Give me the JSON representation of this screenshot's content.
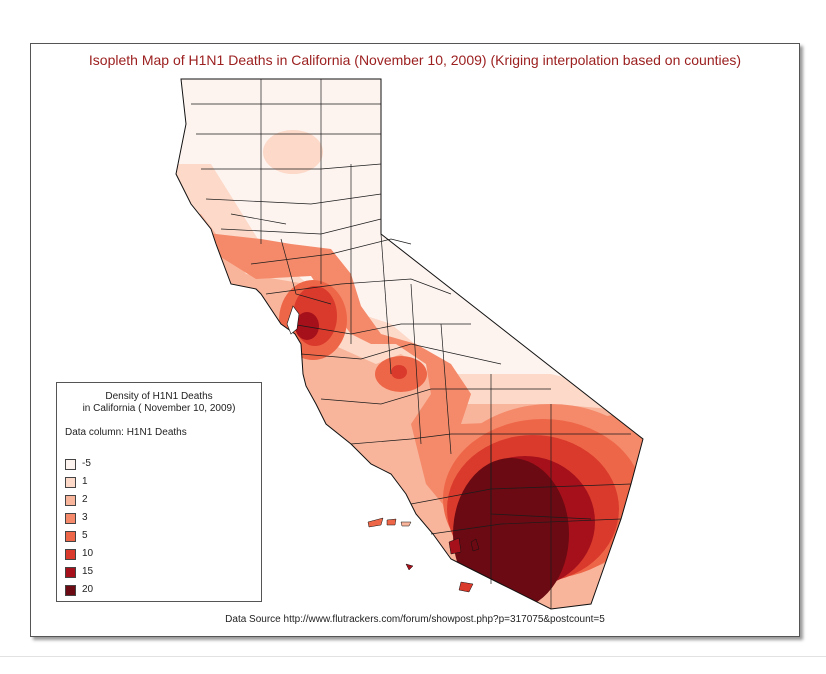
{
  "title": "Isopleth Map of H1N1 Deaths in California (November 10, 2009) (Kriging interpolation based on counties)",
  "legend": {
    "title_line1": "Density of H1N1 Deaths",
    "title_line2": "in California ( November 10, 2009)",
    "data_column": "Data column: H1N1 Deaths",
    "items": [
      {
        "label": "-5",
        "color": "#fdf4f0"
      },
      {
        "label": "1",
        "color": "#fcd9c9"
      },
      {
        "label": "2",
        "color": "#f9b59c"
      },
      {
        "label": "3",
        "color": "#f48a6a"
      },
      {
        "label": "5",
        "color": "#ee6648"
      },
      {
        "label": "10",
        "color": "#d93a2c"
      },
      {
        "label": "15",
        "color": "#a5101b"
      },
      {
        "label": "20",
        "color": "#6b0a12"
      }
    ]
  },
  "data_source": "Data Source http://www.flutrackers.com/forum/showpost.php?p=317075&postcount=5"
}
